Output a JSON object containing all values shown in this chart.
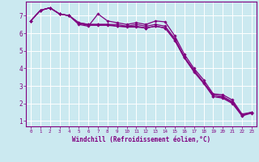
{
  "background_color": "#cbe9f0",
  "grid_color": "#ffffff",
  "line_color": "#800080",
  "xlabel": "Windchill (Refroidissement éolien,°C)",
  "xlim": [
    -0.5,
    23.5
  ],
  "ylim": [
    0.7,
    7.8
  ],
  "yticks": [
    1,
    2,
    3,
    4,
    5,
    6,
    7
  ],
  "xticks": [
    0,
    1,
    2,
    3,
    4,
    5,
    6,
    7,
    8,
    9,
    10,
    11,
    12,
    13,
    14,
    15,
    16,
    17,
    18,
    19,
    20,
    21,
    22,
    23
  ],
  "series": [
    [
      6.7,
      7.3,
      7.45,
      7.1,
      7.0,
      6.5,
      6.4,
      7.1,
      6.7,
      6.6,
      6.5,
      6.6,
      6.5,
      6.7,
      6.65,
      5.85,
      4.8,
      4.0,
      3.35,
      2.55,
      2.5,
      2.2,
      1.4,
      1.5
    ],
    [
      6.7,
      7.3,
      7.45,
      7.1,
      7.0,
      6.6,
      6.5,
      6.5,
      6.5,
      6.5,
      6.4,
      6.5,
      6.4,
      6.5,
      6.4,
      5.7,
      4.65,
      3.9,
      3.2,
      2.5,
      2.4,
      2.1,
      1.35,
      1.5
    ],
    [
      6.7,
      7.3,
      7.45,
      7.1,
      7.0,
      6.6,
      6.5,
      6.5,
      6.5,
      6.4,
      6.4,
      6.4,
      6.3,
      6.4,
      6.3,
      5.6,
      4.6,
      3.85,
      3.2,
      2.4,
      2.35,
      2.05,
      1.3,
      1.5
    ],
    [
      6.7,
      7.3,
      7.45,
      7.1,
      7.0,
      6.55,
      6.45,
      6.45,
      6.45,
      6.4,
      6.35,
      6.35,
      6.3,
      6.4,
      6.3,
      5.6,
      4.6,
      3.8,
      3.15,
      2.4,
      2.3,
      2.0,
      1.3,
      1.45
    ]
  ]
}
